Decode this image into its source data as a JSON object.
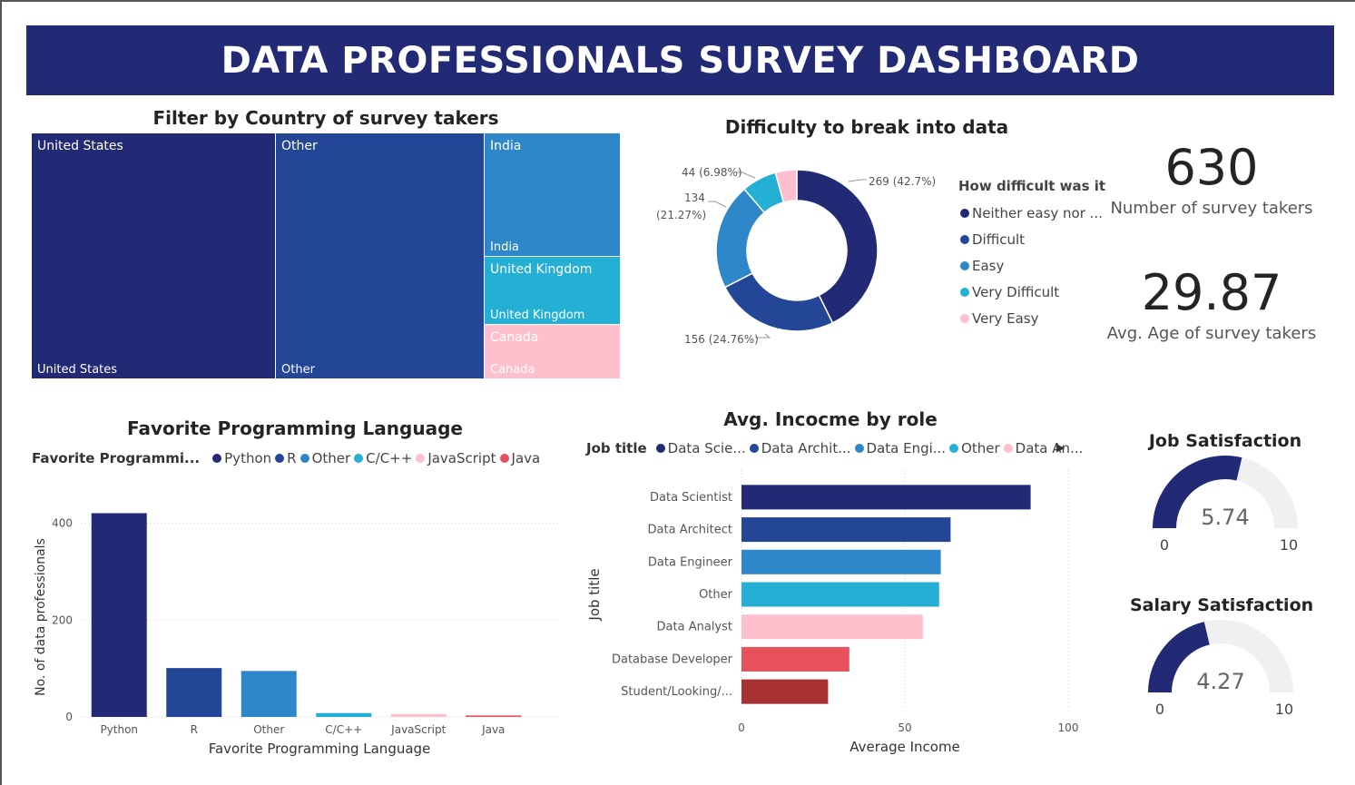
{
  "header": {
    "title": "DATA PROFESSIONALS SURVEY DASHBOARD"
  },
  "treemap": {
    "title": "Filter by Country of survey takers",
    "cells": [
      {
        "label": "United States",
        "color": "#232a75"
      },
      {
        "label": "Other",
        "color": "#234696"
      },
      {
        "label": "India",
        "color": "#2e87c8"
      },
      {
        "label": "United Kingdom",
        "color": "#24b0d5"
      },
      {
        "label": "Canada",
        "color": "#ffc0cd"
      }
    ]
  },
  "donut": {
    "title": "Difficulty to break into data",
    "legend_title": "How difficult was it",
    "legend": [
      "Neither easy nor ...",
      "Difficult",
      "Easy",
      "Very Difficult",
      "Very Easy"
    ],
    "labels": [
      "269 (42.7%)",
      "156 (24.76%)",
      "134",
      "(21.27%)",
      "44 (6.98%)"
    ]
  },
  "kpis": {
    "survey_takers": {
      "value": "630",
      "label": "Number of survey takers"
    },
    "avg_age": {
      "value": "29.87",
      "label": "Avg. Age of survey takers"
    }
  },
  "lang_chart": {
    "legend_title": "Favorite Programmi...",
    "legend": [
      "Python",
      "R",
      "Other",
      "C/C++",
      "JavaScript",
      "Java"
    ]
  },
  "income_chart": {
    "legend_title": "Job title",
    "legend": [
      "Data Scie...",
      "Data Archit...",
      "Data Engi...",
      "Other",
      "Data An..."
    ],
    "more_arrow": "▶"
  },
  "gauges": {
    "job": {
      "title": "Job Satisfaction",
      "value_text": "5.74",
      "min": "0",
      "max": "10",
      "value": 5.74
    },
    "salary": {
      "title": "Salary Satisfaction",
      "value_text": "4.27",
      "min": "0",
      "max": "10",
      "value": 4.27
    }
  },
  "chart_data": [
    {
      "type": "treemap",
      "title": "Filter by Country of survey takers",
      "categories": [
        "United States",
        "Other",
        "India",
        "United Kingdom",
        "Canada"
      ]
    },
    {
      "type": "pie",
      "title": "Difficulty to break into data",
      "categories": [
        "Neither easy nor difficult",
        "Difficult",
        "Easy",
        "Very Difficult",
        "Very Easy"
      ],
      "values": [
        269,
        156,
        134,
        44,
        27
      ],
      "colors": [
        "#232a75",
        "#234696",
        "#2e87c8",
        "#24b0d5",
        "#ffc0cd"
      ],
      "legend": "right"
    },
    {
      "type": "bar",
      "title": "Favorite Programming Language",
      "categories": [
        "Python",
        "R",
        "Other",
        "C/C++",
        "JavaScript",
        "Java"
      ],
      "values": [
        421,
        101,
        95,
        8,
        6,
        3
      ],
      "colors": [
        "#232a75",
        "#234696",
        "#2e87c8",
        "#24b0d5",
        "#ffc0cd",
        "#e8505b"
      ],
      "xlabel": "Favorite Programming Language",
      "ylabel": "No. of data professionals",
      "ylim": [
        0,
        450
      ],
      "yticks": [
        0,
        200,
        400
      ],
      "grid": true,
      "legend": "top-left"
    },
    {
      "type": "bar",
      "orientation": "horizontal",
      "title": "Avg. Incocme by role",
      "categories": [
        "Data Scientist",
        "Data Architect",
        "Data Engineer",
        "Other",
        "Data Analyst",
        "Database Developer",
        "Student/Looking/..."
      ],
      "values": [
        88.5,
        64,
        61,
        60.5,
        55.5,
        33,
        26.5
      ],
      "colors": [
        "#232a75",
        "#234696",
        "#2e87c8",
        "#24b0d5",
        "#ffc0cd",
        "#e8505b",
        "#a83232"
      ],
      "xlabel": "Average Income",
      "ylabel": "Job title",
      "xlim": [
        0,
        100
      ],
      "xticks": [
        0,
        50,
        100
      ],
      "grid": true,
      "legend": "top-left"
    }
  ]
}
